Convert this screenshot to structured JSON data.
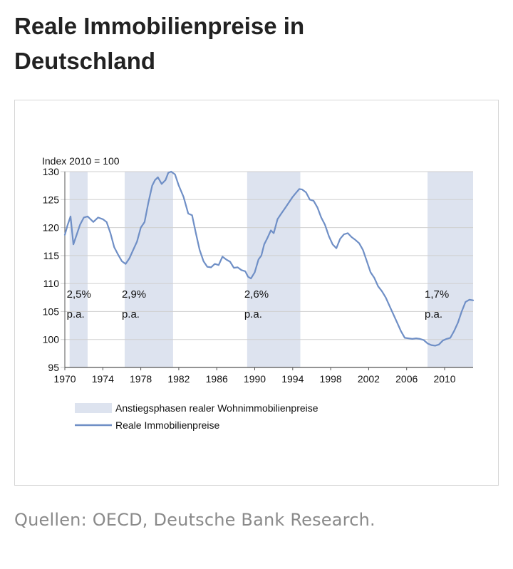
{
  "header": {
    "title": "Reale Immobilienpreise in Deutschland"
  },
  "source_note": "Quellen: OECD, Deutsche Bank Research.",
  "colors": {
    "shade": "#dde3ef",
    "line": "#6f8fc6",
    "grid": "#cfcfcf",
    "axis": "#555555"
  },
  "chart_data": {
    "type": "line",
    "title": "",
    "ylabel": "Index 2010 = 100",
    "xlabel": "",
    "xlim": [
      1970,
      2013
    ],
    "ylim": [
      95,
      130
    ],
    "grid": "horizontal",
    "legend_position": "bottom-left",
    "x_ticks": [
      1970,
      1974,
      1978,
      1982,
      1986,
      1990,
      1994,
      1998,
      2002,
      2006,
      2010
    ],
    "x_tick_labels": [
      "1970",
      "1974",
      "1978",
      "1982",
      "1986",
      "1990",
      "1994",
      "1998",
      "2002",
      "2006",
      "2010"
    ],
    "y_ticks": [
      95,
      100,
      105,
      110,
      115,
      120,
      125,
      130
    ],
    "y_tick_labels": [
      "95",
      "100",
      "105",
      "110",
      "115",
      "120",
      "125",
      "130"
    ],
    "legend": [
      {
        "label": "Anstiegsphasen realer Wohnimmobilienpreise",
        "kind": "shade"
      },
      {
        "label": "Reale Immobilienpreise",
        "kind": "line"
      }
    ],
    "shaded_periods": [
      {
        "start": 1970.5,
        "end": 1972.4,
        "rate": "2,5%",
        "unit": "p.a."
      },
      {
        "start": 1976.3,
        "end": 1981.4,
        "rate": "2,9%",
        "unit": "p.a."
      },
      {
        "start": 1989.2,
        "end": 1994.8,
        "rate": "2,6%",
        "unit": "p.a."
      },
      {
        "start": 2008.2,
        "end": 2013.0,
        "rate": "1,7%",
        "unit": "p.a."
      }
    ],
    "series": [
      {
        "x": [
          1970.0,
          1970.3,
          1970.6,
          1970.9,
          1971.2,
          1971.6,
          1972.0,
          1972.4,
          1972.7,
          1973.0,
          1973.5,
          1974.0,
          1974.4,
          1974.8,
          1975.2,
          1975.6,
          1976.0,
          1976.4,
          1976.8,
          1977.2,
          1977.6,
          1978.0,
          1978.4,
          1978.8,
          1979.2,
          1979.5,
          1979.8,
          1980.2,
          1980.6,
          1980.9,
          1981.2,
          1981.6,
          1982.0,
          1982.5,
          1983.0,
          1983.4,
          1983.8,
          1984.2,
          1984.6,
          1985.0,
          1985.4,
          1985.8,
          1986.2,
          1986.6,
          1987.0,
          1987.4,
          1987.8,
          1988.2,
          1988.6,
          1989.0,
          1989.3,
          1989.6,
          1990.0,
          1990.4,
          1990.7,
          1991.0,
          1991.3,
          1991.7,
          1992.0,
          1992.4,
          1992.8,
          1993.2,
          1993.6,
          1994.0,
          1994.3,
          1994.7,
          1995.0,
          1995.4,
          1995.8,
          1996.2,
          1996.6,
          1997.0,
          1997.4,
          1997.8,
          1998.2,
          1998.6,
          1999.0,
          1999.4,
          1999.8,
          2000.2,
          2000.6,
          2001.0,
          2001.4,
          2001.8,
          2002.2,
          2002.6,
          2003.0,
          2003.4,
          2003.8,
          2004.2,
          2004.6,
          2005.0,
          2005.4,
          2005.8,
          2006.2,
          2006.6,
          2007.0,
          2007.4,
          2007.8,
          2008.2,
          2008.6,
          2009.0,
          2009.4,
          2009.8,
          2010.2,
          2010.6,
          2011.0,
          2011.4,
          2011.8,
          2012.2,
          2012.6,
          2013.0
        ],
        "y": [
          118.7,
          120.5,
          122.0,
          117.0,
          118.5,
          120.5,
          121.8,
          122.0,
          121.5,
          121.0,
          121.8,
          121.5,
          121.0,
          119.0,
          116.5,
          115.2,
          114.0,
          113.5,
          114.5,
          116.0,
          117.5,
          120.0,
          121.0,
          124.5,
          127.5,
          128.5,
          129.0,
          127.8,
          128.5,
          129.8,
          130.0,
          129.5,
          127.5,
          125.5,
          122.5,
          122.2,
          119.0,
          116.0,
          114.0,
          113.0,
          112.9,
          113.5,
          113.3,
          114.8,
          114.3,
          113.9,
          112.8,
          112.9,
          112.4,
          112.2,
          111.2,
          110.9,
          112.0,
          114.3,
          115.0,
          117.0,
          118.0,
          119.5,
          119.0,
          121.5,
          122.5,
          123.5,
          124.5,
          125.5,
          126.1,
          126.9,
          126.8,
          126.3,
          125.0,
          124.8,
          123.6,
          121.8,
          120.5,
          118.5,
          117.0,
          116.3,
          118.0,
          118.8,
          119.0,
          118.3,
          117.8,
          117.2,
          116.0,
          114.0,
          112.0,
          111.0,
          109.5,
          108.6,
          107.5,
          106.0,
          104.5,
          103.0,
          101.5,
          100.3,
          100.2,
          100.1,
          100.2,
          100.1,
          99.9,
          99.3,
          99.0,
          98.9,
          99.1,
          99.8,
          100.1,
          100.3,
          101.5,
          103.0,
          105.0,
          106.7,
          107.1,
          107.0
        ]
      }
    ]
  }
}
